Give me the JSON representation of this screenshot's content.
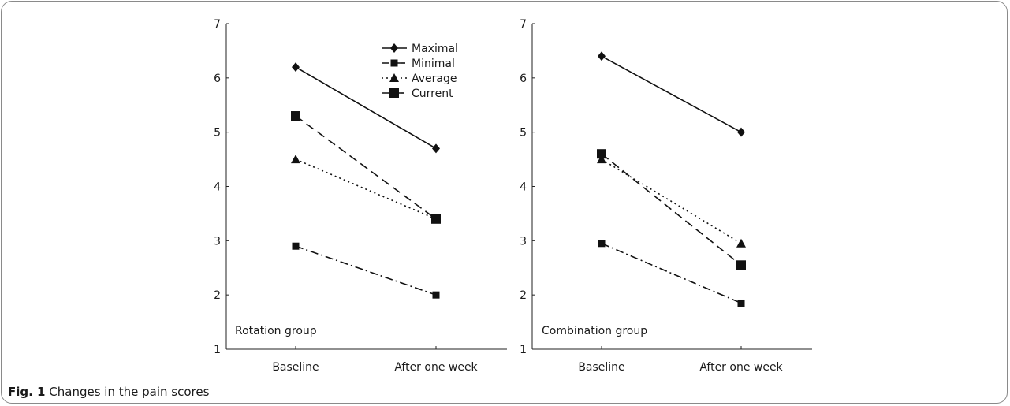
{
  "caption": {
    "label": "Fig. 1",
    "text": "Changes in the pain scores"
  },
  "chart_data": [
    {
      "type": "line",
      "panel_label": "Rotation group",
      "categories": [
        "Baseline",
        "After one week"
      ],
      "ylim": [
        1,
        7
      ],
      "yticks": [
        1,
        2,
        3,
        4,
        5,
        6,
        7
      ],
      "grid": false,
      "legend": "top-right",
      "series": [
        {
          "name": "Maximal",
          "values": [
            6.2,
            4.7
          ],
          "marker": "diamond",
          "dash": "solid"
        },
        {
          "name": "Minimal",
          "values": [
            2.9,
            2.0
          ],
          "marker": "small-square",
          "dash": "dashdot"
        },
        {
          "name": "Average",
          "values": [
            4.5,
            3.4
          ],
          "marker": "triangle",
          "dash": "dotted"
        },
        {
          "name": "Current",
          "values": [
            5.3,
            3.4
          ],
          "marker": "square",
          "dash": "dashed"
        }
      ]
    },
    {
      "type": "line",
      "panel_label": "Combination group",
      "categories": [
        "Baseline",
        "After one week"
      ],
      "ylim": [
        1,
        7
      ],
      "yticks": [
        1,
        2,
        3,
        4,
        5,
        6,
        7
      ],
      "grid": false,
      "series": [
        {
          "name": "Maximal",
          "values": [
            6.4,
            5.0
          ],
          "marker": "diamond",
          "dash": "solid"
        },
        {
          "name": "Minimal",
          "values": [
            2.95,
            1.85
          ],
          "marker": "small-square",
          "dash": "dashdot"
        },
        {
          "name": "Average",
          "values": [
            4.5,
            2.95
          ],
          "marker": "triangle",
          "dash": "dotted"
        },
        {
          "name": "Current",
          "values": [
            4.6,
            2.55
          ],
          "marker": "square",
          "dash": "dashed"
        }
      ]
    }
  ]
}
